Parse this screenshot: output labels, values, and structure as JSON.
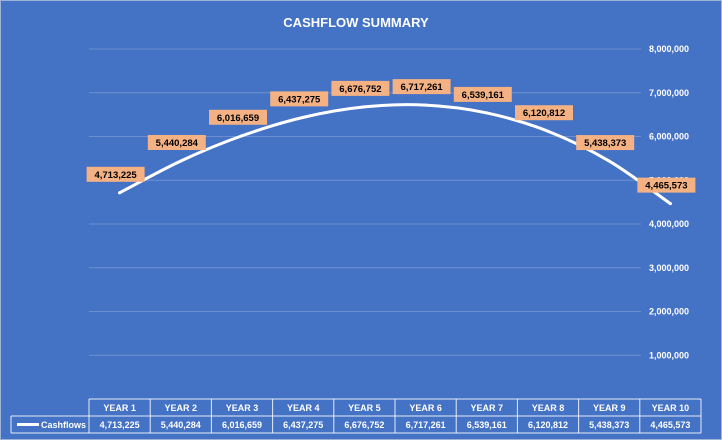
{
  "chart_data": {
    "type": "line",
    "title": "CASHFLOW SUMMARY",
    "categories": [
      "YEAR 1",
      "YEAR 2",
      "YEAR 3",
      "YEAR 4",
      "YEAR 5",
      "YEAR 6",
      "YEAR 7",
      "YEAR 8",
      "YEAR 9",
      "YEAR 10"
    ],
    "series": [
      {
        "name": "Cashflows",
        "values": [
          4713225,
          5440284,
          6016659,
          6437275,
          6676752,
          6717261,
          6539161,
          6120812,
          5438373,
          4465573
        ],
        "labels": [
          "4,713,225",
          "5,440,284",
          "6,016,659",
          "6,437,275",
          "6,676,752",
          "6,717,261",
          "6,539,161",
          "6,120,812",
          "5,438,373",
          "4,465,573"
        ]
      }
    ],
    "ylim": [
      0,
      8000000
    ],
    "yticks": [
      {
        "value": 1000000,
        "label": "1,000,000"
      },
      {
        "value": 2000000,
        "label": "2,000,000"
      },
      {
        "value": 3000000,
        "label": "3,000,000"
      },
      {
        "value": 4000000,
        "label": "4,000,000"
      },
      {
        "value": 5000000,
        "label": "5,000,000"
      },
      {
        "value": 6000000,
        "label": "6,000,000"
      },
      {
        "value": 7000000,
        "label": "7,000,000"
      },
      {
        "value": 8000000,
        "label": "8,000,000"
      }
    ],
    "grid": true,
    "legend": "data-table",
    "colors": {
      "background": "#4472c4",
      "line": "#ffffff",
      "label_box": "#f4b183"
    }
  }
}
